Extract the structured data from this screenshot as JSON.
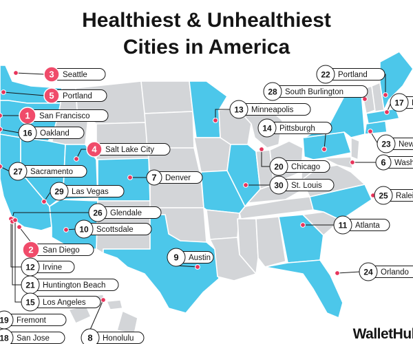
{
  "title_line1": "Healthiest & Unhealthiest",
  "title_line2": "Cities in America",
  "watermark": "WalletHub",
  "colors": {
    "highlight_state": "#4cc7ea",
    "other_state": "#d3d5d8",
    "border": "#ffffff",
    "top_rank_badge": "#f04b6a",
    "rank_badge": "#ffffff",
    "dot": "#e8345b",
    "text": "#151515"
  },
  "cities": [
    {
      "rank": "3",
      "name": "Seattle",
      "highlight": true
    },
    {
      "rank": "5",
      "name": "Portland",
      "highlight": true
    },
    {
      "rank": "1",
      "name": "San Francisco",
      "highlight": true
    },
    {
      "rank": "16",
      "name": "Oakland",
      "highlight": false
    },
    {
      "rank": "4",
      "name": "Salt Lake City",
      "highlight": true
    },
    {
      "rank": "27",
      "name": "Sacramento",
      "highlight": false
    },
    {
      "rank": "7",
      "name": "Denver",
      "highlight": false
    },
    {
      "rank": "29",
      "name": "Las Vegas",
      "highlight": false
    },
    {
      "rank": "26",
      "name": "Glendale",
      "highlight": false
    },
    {
      "rank": "10",
      "name": "Scottsdale",
      "highlight": false
    },
    {
      "rank": "2",
      "name": "San Diego",
      "highlight": true
    },
    {
      "rank": "12",
      "name": "Irvine",
      "highlight": false
    },
    {
      "rank": "21",
      "name": "Huntington Beach",
      "highlight": false
    },
    {
      "rank": "15",
      "name": "Los Angeles",
      "highlight": false
    },
    {
      "rank": "19",
      "name": "Fremont",
      "highlight": false
    },
    {
      "rank": "18",
      "name": "San Jose",
      "highlight": false
    },
    {
      "rank": "8",
      "name": "Honolulu",
      "highlight": false
    },
    {
      "rank": "9",
      "name": "Austin",
      "highlight": false
    },
    {
      "rank": "13",
      "name": "Minneapolis",
      "highlight": false
    },
    {
      "rank": "14",
      "name": "Pittsburgh",
      "highlight": false
    },
    {
      "rank": "20",
      "name": "Chicago",
      "highlight": false
    },
    {
      "rank": "30",
      "name": "St. Louis",
      "highlight": false
    },
    {
      "rank": "11",
      "name": "Atlanta",
      "highlight": false
    },
    {
      "rank": "24",
      "name": "Orlando",
      "highlight": false
    },
    {
      "rank": "22",
      "name": "Portland",
      "highlight": false
    },
    {
      "rank": "28",
      "name": "South Burlington",
      "highlight": false
    },
    {
      "rank": "17",
      "name": "B",
      "highlight": false
    },
    {
      "rank": "23",
      "name": "New",
      "highlight": false
    },
    {
      "rank": "6",
      "name": "Washi",
      "highlight": false
    },
    {
      "rank": "25",
      "name": "Ralei",
      "highlight": false
    }
  ]
}
